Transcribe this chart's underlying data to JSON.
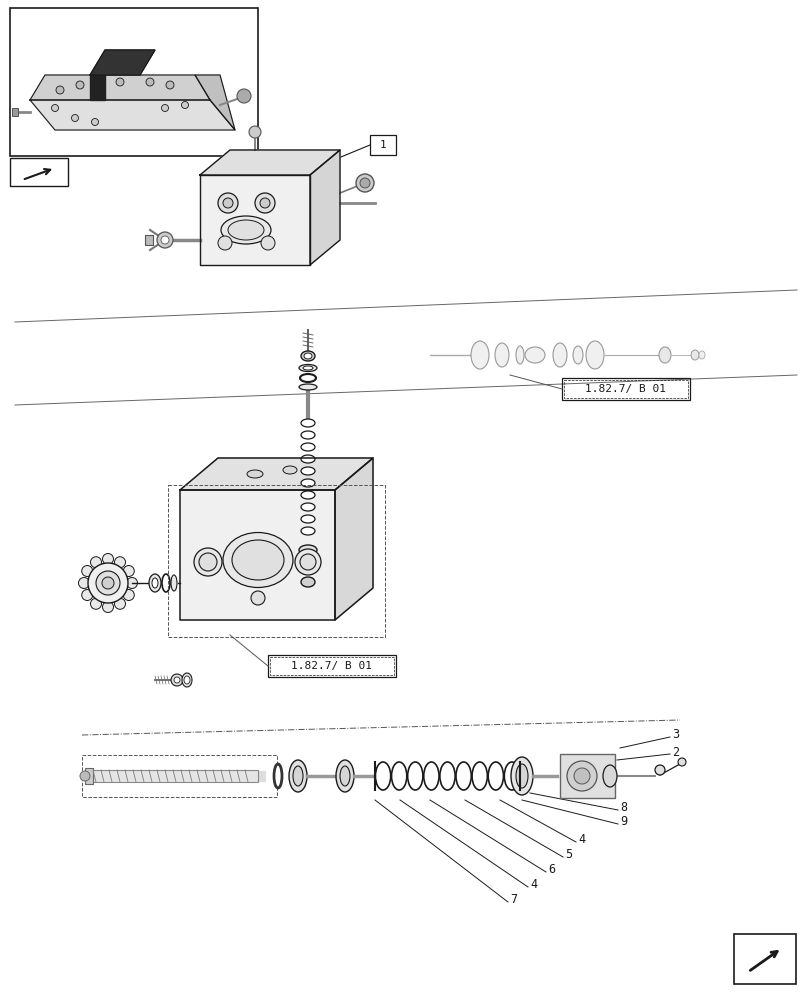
{
  "bg_color": "#ffffff",
  "line_color": "#1a1a1a",
  "gray1": "#aaaaaa",
  "gray2": "#cccccc",
  "gray3": "#e8e8e8",
  "label_b01": "1.82.7/ B 01",
  "fig_width": 8.12,
  "fig_height": 10.0,
  "dpi": 100
}
